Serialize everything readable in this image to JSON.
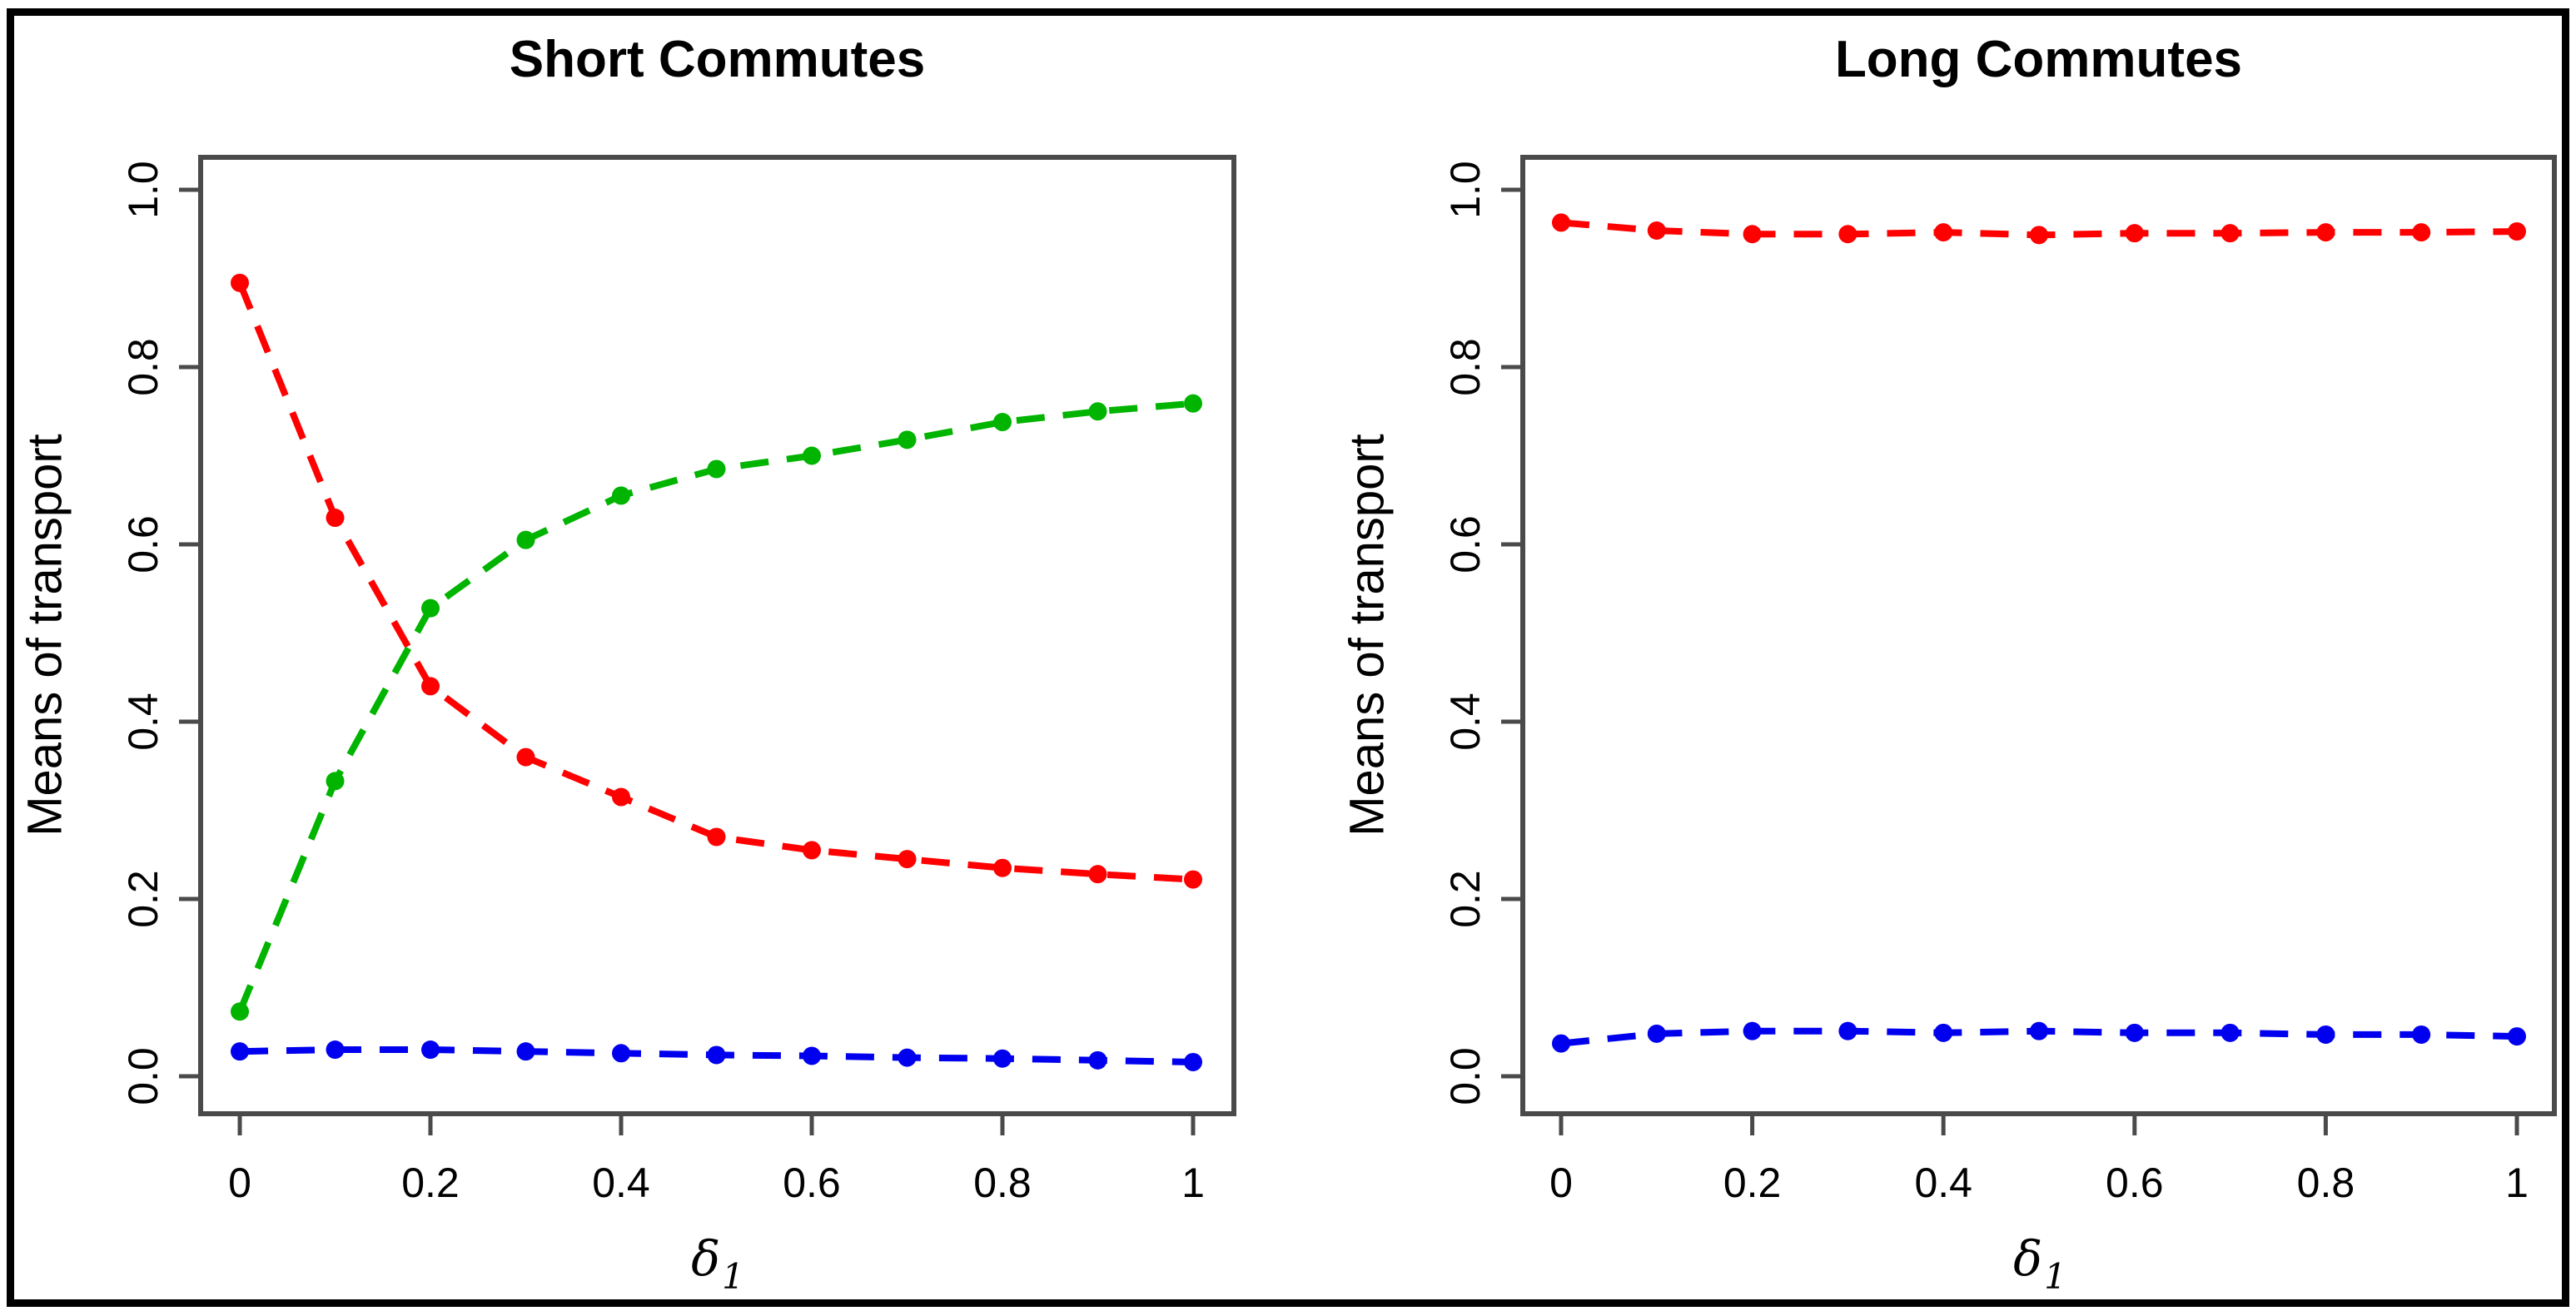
{
  "figure": {
    "background": "#ffffff",
    "frame_color": "#000000",
    "axis_color": "#4a4a4a",
    "text_color": "#000000"
  },
  "chart_data": [
    {
      "type": "line",
      "title": "Short Commutes",
      "ylabel": "Means of transport",
      "xlabel": "δ",
      "xlabel_subscript": "1",
      "xlim": [
        0,
        1
      ],
      "ylim": [
        0,
        1
      ],
      "grid": false,
      "legend": "none",
      "line_style": "dashed",
      "marker": "filled-circle",
      "x": [
        0,
        0.1,
        0.2,
        0.3,
        0.4,
        0.5,
        0.6,
        0.7,
        0.8,
        0.9,
        1.0
      ],
      "x_ticks": [
        0,
        0.2,
        0.4,
        0.6,
        0.8,
        1
      ],
      "x_tick_labels": [
        "0",
        "0.2",
        "0.4",
        "0.6",
        "0.8",
        "1"
      ],
      "y_ticks": [
        0,
        0.2,
        0.4,
        0.6,
        0.8,
        1
      ],
      "y_tick_labels": [
        "0.0",
        "0.2",
        "0.4",
        "0.6",
        "0.8",
        "1.0"
      ],
      "series": [
        {
          "name": "series-red",
          "color": "#FF0000",
          "values": [
            0.895,
            0.63,
            0.44,
            0.36,
            0.315,
            0.27,
            0.255,
            0.245,
            0.235,
            0.228,
            0.222
          ]
        },
        {
          "name": "series-green",
          "color": "#00B400",
          "values": [
            0.073,
            0.333,
            0.528,
            0.605,
            0.655,
            0.685,
            0.7,
            0.718,
            0.738,
            0.75,
            0.759
          ]
        },
        {
          "name": "series-blue",
          "color": "#0000EE",
          "values": [
            0.028,
            0.03,
            0.03,
            0.028,
            0.026,
            0.024,
            0.023,
            0.021,
            0.02,
            0.018,
            0.016
          ]
        }
      ]
    },
    {
      "type": "line",
      "title": "Long Commutes",
      "ylabel": "Means of transport",
      "xlabel": "δ",
      "xlabel_subscript": "1",
      "xlim": [
        0,
        1
      ],
      "ylim": [
        0,
        1
      ],
      "grid": false,
      "legend": "none",
      "line_style": "dashed",
      "marker": "filled-circle",
      "x": [
        0,
        0.1,
        0.2,
        0.3,
        0.4,
        0.5,
        0.6,
        0.7,
        0.8,
        0.9,
        1.0
      ],
      "x_ticks": [
        0,
        0.2,
        0.4,
        0.6,
        0.8,
        1
      ],
      "x_tick_labels": [
        "0",
        "0.2",
        "0.4",
        "0.6",
        "0.8",
        "1"
      ],
      "y_ticks": [
        0,
        0.2,
        0.4,
        0.6,
        0.8,
        1
      ],
      "y_tick_labels": [
        "0.0",
        "0.2",
        "0.4",
        "0.6",
        "0.8",
        "1.0"
      ],
      "series": [
        {
          "name": "series-red",
          "color": "#FF0000",
          "values": [
            0.963,
            0.954,
            0.95,
            0.95,
            0.952,
            0.949,
            0.951,
            0.951,
            0.952,
            0.952,
            0.953
          ]
        },
        {
          "name": "series-blue",
          "color": "#0000EE",
          "values": [
            0.037,
            0.048,
            0.051,
            0.051,
            0.049,
            0.051,
            0.049,
            0.049,
            0.047,
            0.047,
            0.045
          ]
        }
      ]
    }
  ]
}
